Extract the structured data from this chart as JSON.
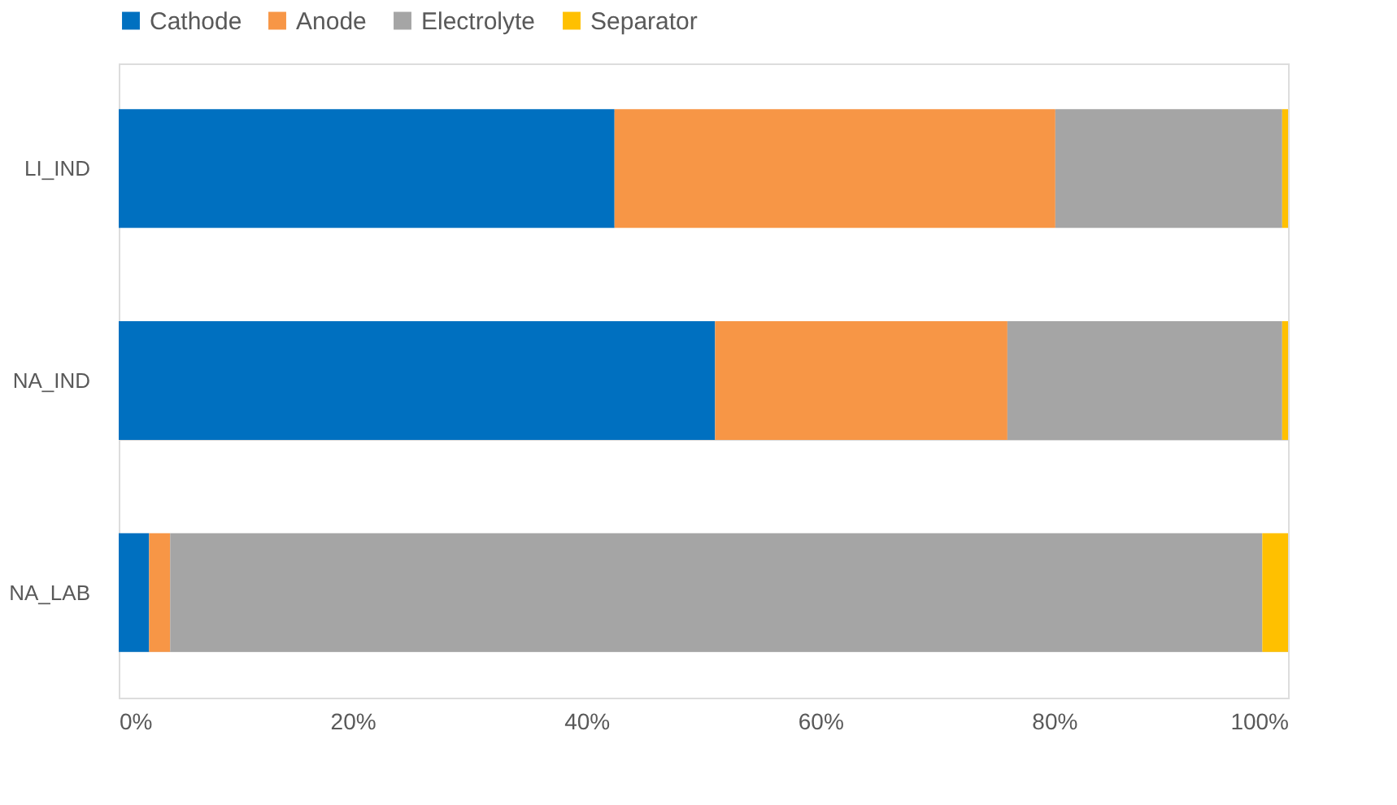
{
  "chart_data": {
    "type": "bar",
    "orientation": "horizontal",
    "stacked": true,
    "categories": [
      "LI_IND",
      "NA_IND",
      "NA_LAB"
    ],
    "series": [
      {
        "name": "Cathode",
        "color": "#0070c0",
        "values": [
          42.4,
          51.0,
          2.6
        ]
      },
      {
        "name": "Anode",
        "color": "#f79646",
        "values": [
          37.7,
          25.0,
          1.8
        ]
      },
      {
        "name": "Electrolyte",
        "color": "#a5a5a5",
        "values": [
          19.4,
          23.5,
          93.4
        ]
      },
      {
        "name": "Separator",
        "color": "#ffc000",
        "values": [
          0.5,
          0.5,
          2.2
        ]
      }
    ],
    "xlim": [
      0,
      100
    ],
    "xticks": [
      {
        "value": 0,
        "label": "0%"
      },
      {
        "value": 20,
        "label": "20%"
      },
      {
        "value": 40,
        "label": "40%"
      },
      {
        "value": 60,
        "label": "60%"
      },
      {
        "value": 80,
        "label": "80%"
      },
      {
        "value": 100,
        "label": "100%"
      }
    ],
    "grid": "y",
    "legend": "top"
  }
}
